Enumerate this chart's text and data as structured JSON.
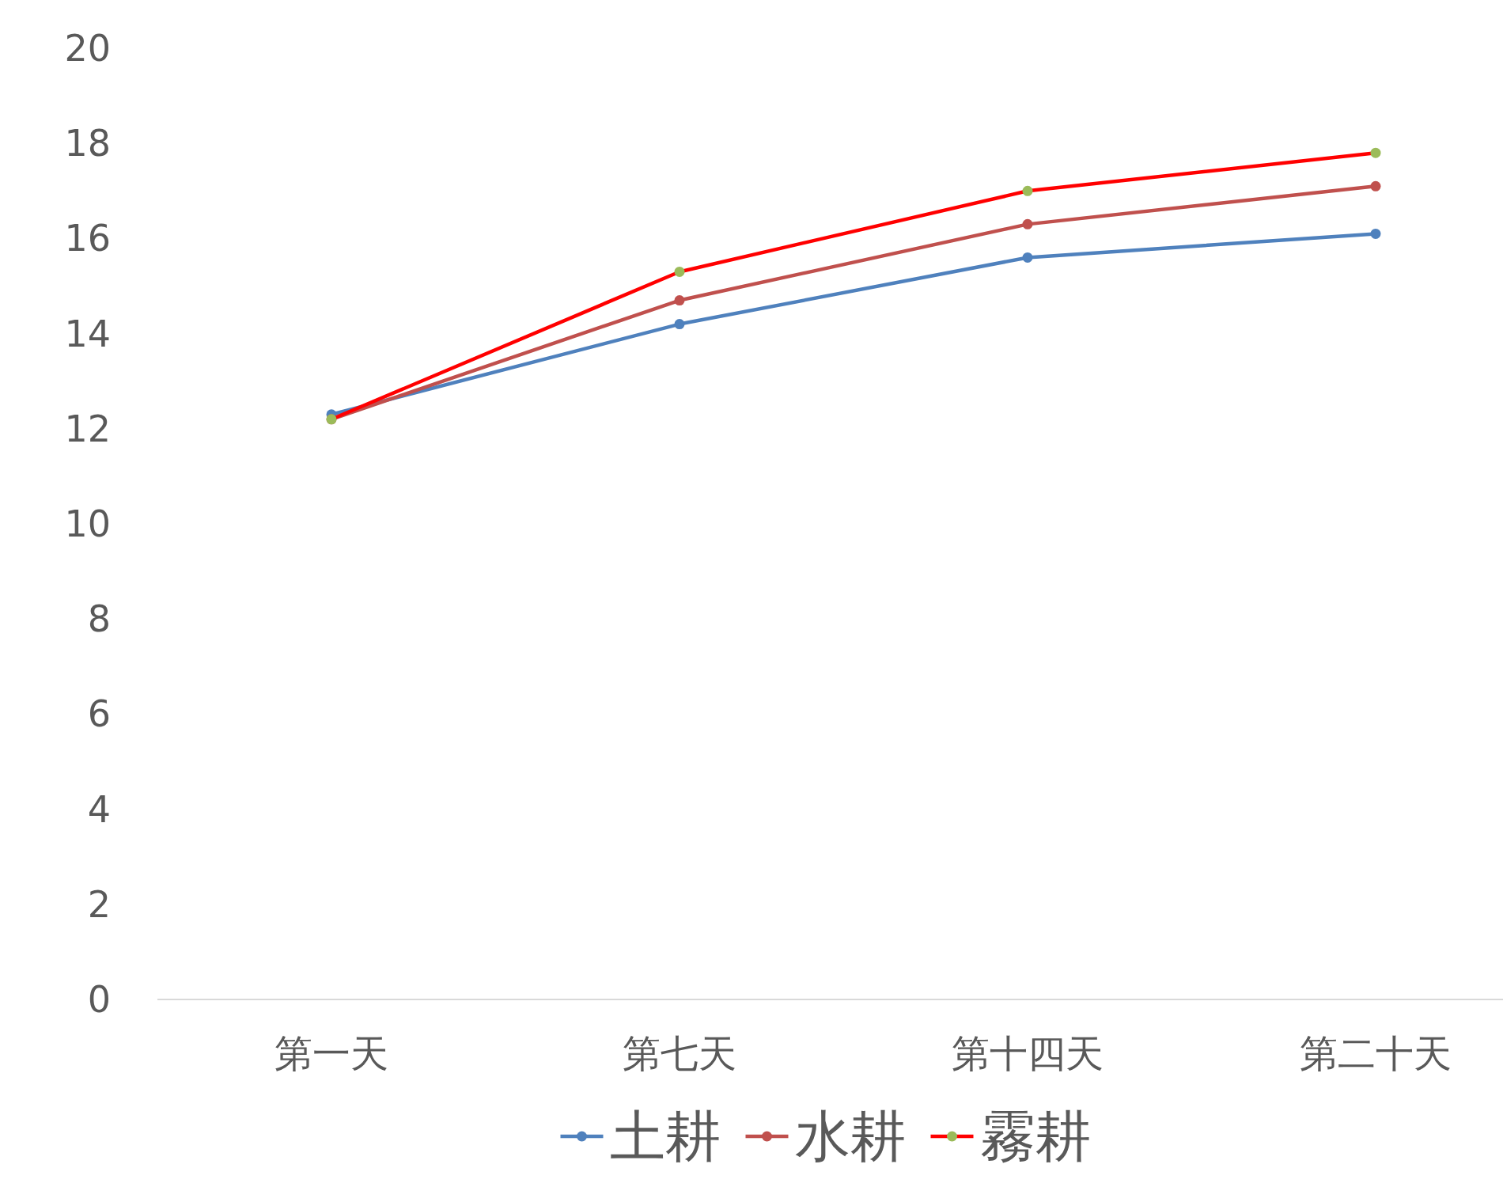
{
  "chart_data": {
    "type": "line",
    "categories": [
      "第一天",
      "第七天",
      "第十四天",
      "第二十天"
    ],
    "series": [
      {
        "name": "土耕",
        "color": "#4f81bd",
        "values": [
          12.3,
          14.2,
          15.6,
          16.1
        ]
      },
      {
        "name": "水耕",
        "color": "#c0504d",
        "values": [
          12.2,
          14.7,
          16.3,
          17.1
        ]
      },
      {
        "name": "霧耕",
        "color": "#ff0000",
        "colors": [
          "#9bbb59",
          "#9bbb59",
          "#9bbb59",
          "#9bbb59"
        ],
        "values": [
          12.2,
          15.3,
          17.0,
          17.8
        ]
      }
    ],
    "ylim": [
      0,
      20
    ],
    "yticks": [
      0,
      2,
      4,
      6,
      8,
      10,
      12,
      14,
      16,
      18,
      20
    ],
    "grid": false,
    "legend": "bottom",
    "marker": "circle",
    "line_style": "solid"
  }
}
